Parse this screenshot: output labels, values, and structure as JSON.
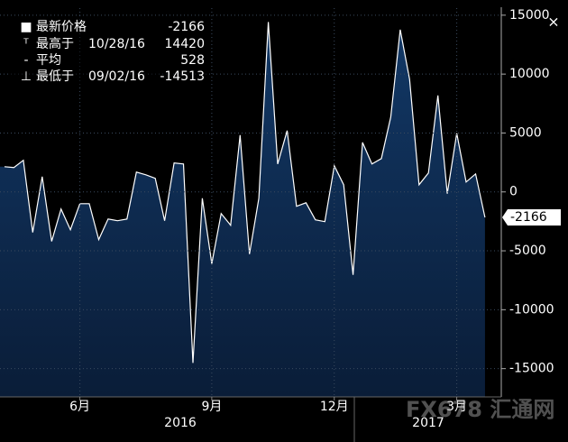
{
  "chart_data": {
    "type": "area",
    "categories": [
      null,
      null,
      null,
      null,
      null,
      null,
      null,
      null,
      "6月",
      null,
      null,
      null,
      null,
      null,
      null,
      null,
      null,
      null,
      null,
      null,
      null,
      null,
      "9月",
      null,
      null,
      null,
      null,
      null,
      null,
      null,
      null,
      null,
      null,
      null,
      null,
      "12月",
      null,
      null,
      null,
      null,
      null,
      null,
      null,
      null,
      null,
      null,
      null,
      null,
      "3月",
      null,
      null,
      null
    ],
    "values": [
      2140,
      2070,
      2680,
      -3440,
      1300,
      -4200,
      -1450,
      -3210,
      -1000,
      -1000,
      -4050,
      -2300,
      -2450,
      -2300,
      1680,
      1450,
      1150,
      -2450,
      2450,
      2370,
      -14513,
      -540,
      -6100,
      -1840,
      -2830,
      4820,
      -5280,
      -540,
      14420,
      2370,
      5200,
      -1220,
      -920,
      -2370,
      -2520,
      2220,
      610,
      -7040,
      4200,
      2370,
      2830,
      6350,
      13770,
      9560,
      610,
      1600,
      8190,
      -150,
      4970,
      840,
      1530,
      -2166
    ],
    "color": "#ffffff",
    "ylim": [
      -17400,
      15600
    ],
    "yticks": [
      {
        "value": 15000,
        "label": "15000"
      },
      {
        "value": 10000,
        "label": "10000"
      },
      {
        "value": 5000,
        "label": "5000"
      },
      0,
      {
        "value": -5000,
        "label": "-5000"
      },
      {
        "value": -10000,
        "label": "-10000"
      },
      {
        "value": -15000,
        "label": "-15000"
      }
    ],
    "grid": true,
    "years": [
      "2016",
      "2017"
    ],
    "legend": [
      {
        "label": "最新价格",
        "value": -2166
      },
      {
        "label": "最高于",
        "date": "10/28/16",
        "value": 14420
      },
      {
        "label": "平均",
        "value": 528
      },
      {
        "label": "最低于",
        "date": "09/02/16",
        "value": -14513
      }
    ],
    "watermark": "FX678 汇通网"
  }
}
